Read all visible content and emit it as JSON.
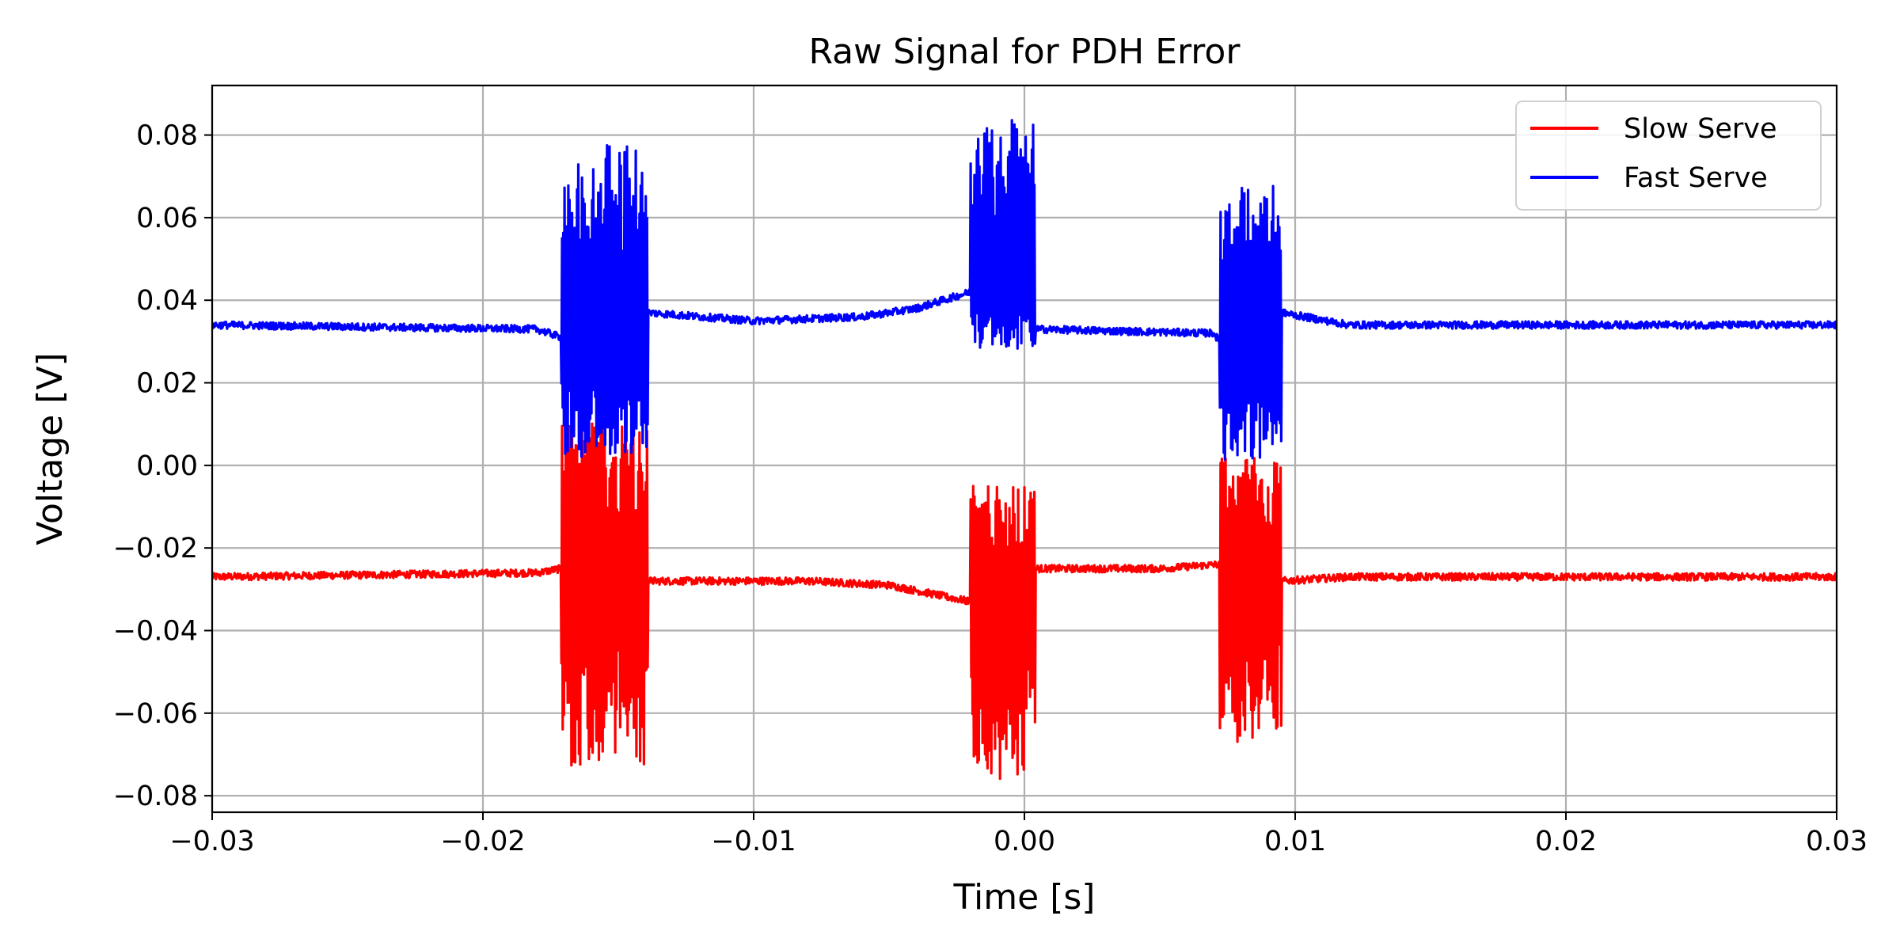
{
  "chart_data": {
    "type": "line",
    "title": "Raw Signal for PDH Error",
    "xlabel": "Time [s]",
    "ylabel": "Voltage [V]",
    "xlim": [
      -0.03,
      0.03
    ],
    "ylim": [
      -0.084,
      0.092
    ],
    "x_ticks": [
      -0.03,
      -0.02,
      -0.01,
      0.0,
      0.01,
      0.02,
      0.03
    ],
    "x_tick_labels": [
      "−0.03",
      "−0.02",
      "−0.01",
      "0.00",
      "0.01",
      "0.02",
      "0.03"
    ],
    "y_ticks": [
      -0.08,
      -0.06,
      -0.04,
      -0.02,
      0.0,
      0.02,
      0.04,
      0.06,
      0.08
    ],
    "y_tick_labels": [
      "−0.08",
      "−0.06",
      "−0.04",
      "−0.02",
      "0.00",
      "0.02",
      "0.04",
      "0.06",
      "0.08"
    ],
    "grid": true,
    "legend": "top-right",
    "series": [
      {
        "name": "Slow Serve",
        "color": "#ff0000",
        "baseline": [
          [
            -0.03,
            -0.027
          ],
          [
            -0.018,
            -0.026
          ],
          [
            -0.0171,
            -0.025
          ],
          [
            -0.0139,
            -0.028
          ],
          [
            -0.008,
            -0.028
          ],
          [
            -0.005,
            -0.029
          ],
          [
            -0.002,
            -0.033
          ],
          [
            -0.0005,
            -0.037
          ],
          [
            0.0004,
            -0.025
          ],
          [
            0.005,
            -0.025
          ],
          [
            0.0071,
            -0.024
          ],
          [
            0.0095,
            -0.028
          ],
          [
            0.012,
            -0.027
          ],
          [
            0.03,
            -0.027
          ]
        ],
        "bursts": [
          {
            "x": [
              -0.0171,
              -0.0139
            ],
            "min": -0.073,
            "max": 0.012
          },
          {
            "x": [
              -0.002,
              0.0004
            ],
            "min": -0.076,
            "max": -0.005
          },
          {
            "x": [
              0.0072,
              0.0095
            ],
            "min": -0.067,
            "max": 0.004
          }
        ]
      },
      {
        "name": "Fast Serve",
        "color": "#0000ff",
        "baseline": [
          [
            -0.03,
            0.034
          ],
          [
            -0.018,
            0.033
          ],
          [
            -0.0171,
            0.031
          ],
          [
            -0.0139,
            0.037
          ],
          [
            -0.01,
            0.035
          ],
          [
            -0.006,
            0.036
          ],
          [
            -0.004,
            0.038
          ],
          [
            -0.002,
            0.042
          ],
          [
            0.0,
            0.046
          ],
          [
            0.0004,
            0.033
          ],
          [
            0.007,
            0.032
          ],
          [
            0.0072,
            0.03
          ],
          [
            0.0095,
            0.037
          ],
          [
            0.012,
            0.034
          ],
          [
            0.03,
            0.034
          ]
        ],
        "bursts": [
          {
            "x": [
              -0.0171,
              -0.0139
            ],
            "min": 0.002,
            "max": 0.078
          },
          {
            "x": [
              -0.002,
              0.0004
            ],
            "min": 0.028,
            "max": 0.084
          },
          {
            "x": [
              0.0072,
              0.0095
            ],
            "min": 0.001,
            "max": 0.068
          }
        ]
      }
    ]
  }
}
